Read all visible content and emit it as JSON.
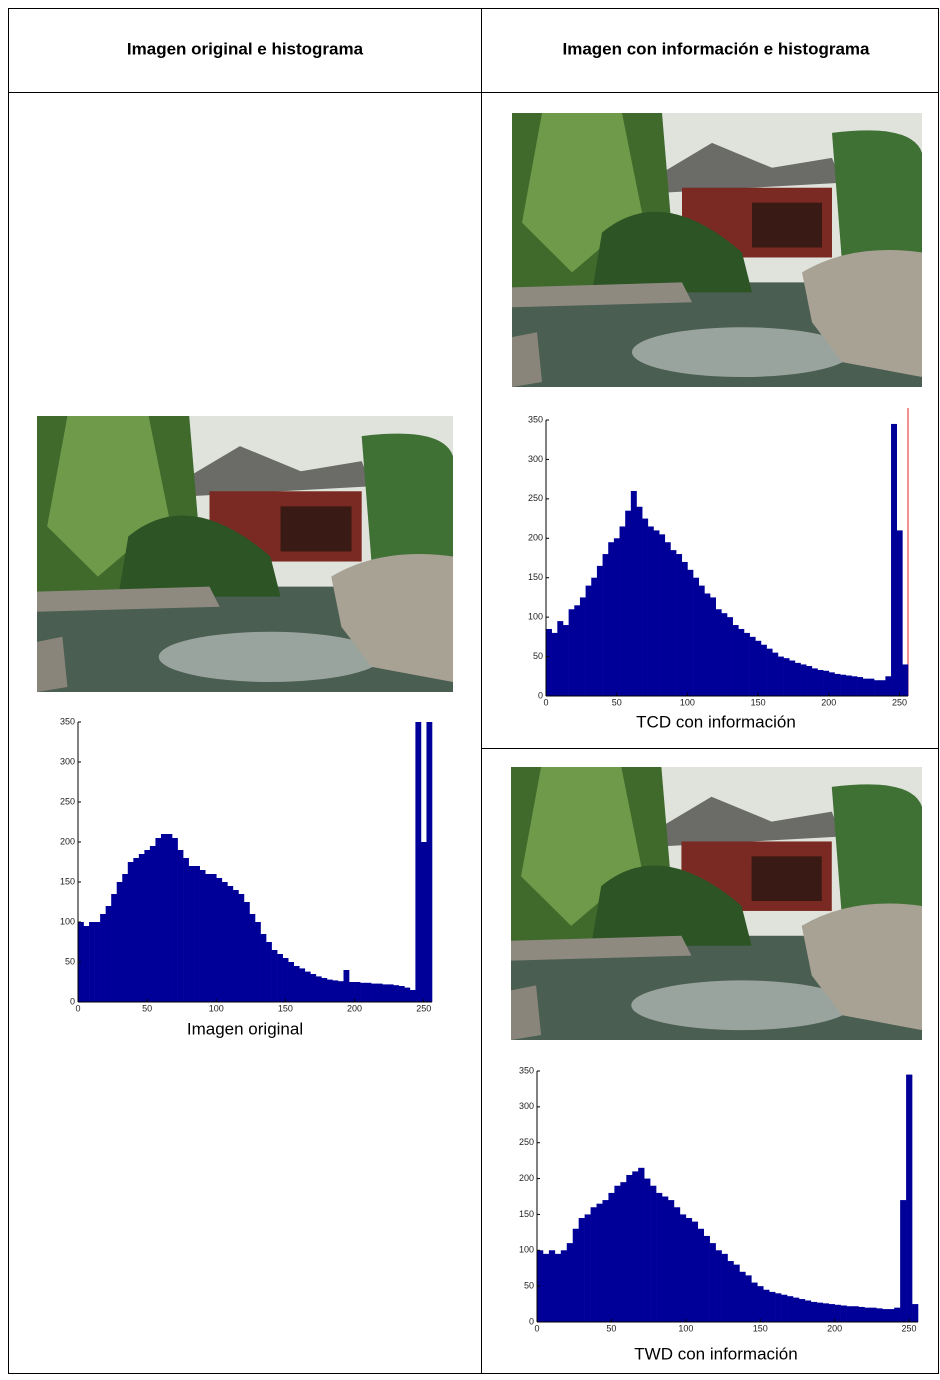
{
  "table": {
    "headers": [
      "Imagen original e histograma",
      "Imagen con información e histograma"
    ]
  },
  "chart_data": [
    {
      "type": "histogram",
      "xlabel": "Imagen original",
      "color": "#000099",
      "bins": [
        0,
        4,
        8,
        12,
        16,
        20,
        24,
        28,
        32,
        36,
        40,
        44,
        48,
        52,
        56,
        60,
        64,
        68,
        72,
        76,
        80,
        84,
        88,
        92,
        96,
        100,
        104,
        108,
        112,
        116,
        120,
        124,
        128,
        132,
        136,
        140,
        144,
        148,
        152,
        156,
        160,
        164,
        168,
        172,
        176,
        180,
        184,
        188,
        192,
        196,
        200,
        204,
        208,
        212,
        216,
        220,
        224,
        228,
        232,
        236,
        240,
        244,
        248,
        252,
        256
      ],
      "values": [
        100,
        95,
        100,
        100,
        110,
        120,
        135,
        150,
        160,
        175,
        180,
        185,
        190,
        195,
        205,
        210,
        210,
        205,
        190,
        180,
        170,
        170,
        165,
        160,
        160,
        155,
        150,
        145,
        140,
        135,
        125,
        110,
        100,
        85,
        75,
        65,
        60,
        55,
        50,
        45,
        42,
        38,
        35,
        32,
        30,
        28,
        27,
        26,
        40,
        25,
        25,
        24,
        24,
        23,
        23,
        22,
        22,
        21,
        20,
        18,
        15,
        350,
        200,
        350
      ],
      "xlim": [
        0,
        256
      ],
      "ylim": [
        0,
        350
      ],
      "xticks": [
        0,
        50,
        100,
        150,
        200,
        250
      ],
      "yticks": [
        0,
        50,
        100,
        150,
        200,
        250,
        300,
        350
      ]
    },
    {
      "type": "histogram",
      "xlabel": "TCD con información",
      "color": "#000099",
      "bins": [
        0,
        4,
        8,
        12,
        16,
        20,
        24,
        28,
        32,
        36,
        40,
        44,
        48,
        52,
        56,
        60,
        64,
        68,
        72,
        76,
        80,
        84,
        88,
        92,
        96,
        100,
        104,
        108,
        112,
        116,
        120,
        124,
        128,
        132,
        136,
        140,
        144,
        148,
        152,
        156,
        160,
        164,
        168,
        172,
        176,
        180,
        184,
        188,
        192,
        196,
        200,
        204,
        208,
        212,
        216,
        220,
        224,
        228,
        232,
        236,
        240,
        244,
        248,
        252,
        256
      ],
      "values": [
        85,
        80,
        95,
        90,
        110,
        115,
        125,
        140,
        150,
        165,
        180,
        195,
        200,
        215,
        235,
        260,
        240,
        225,
        215,
        210,
        205,
        195,
        185,
        180,
        170,
        160,
        150,
        140,
        130,
        125,
        110,
        105,
        100,
        90,
        85,
        80,
        75,
        70,
        65,
        60,
        55,
        50,
        48,
        45,
        42,
        40,
        38,
        35,
        33,
        32,
        30,
        28,
        27,
        26,
        25,
        24,
        22,
        22,
        20,
        20,
        25,
        345,
        210,
        40
      ],
      "xlim": [
        0,
        256
      ],
      "ylim": [
        0,
        350
      ],
      "xticks": [
        0,
        50,
        100,
        150,
        200,
        250
      ],
      "yticks": [
        0,
        50,
        100,
        150,
        200,
        250,
        300,
        350
      ]
    },
    {
      "type": "histogram",
      "xlabel": "TWD con información",
      "color": "#000099",
      "bins": [
        0,
        4,
        8,
        12,
        16,
        20,
        24,
        28,
        32,
        36,
        40,
        44,
        48,
        52,
        56,
        60,
        64,
        68,
        72,
        76,
        80,
        84,
        88,
        92,
        96,
        100,
        104,
        108,
        112,
        116,
        120,
        124,
        128,
        132,
        136,
        140,
        144,
        148,
        152,
        156,
        160,
        164,
        168,
        172,
        176,
        180,
        184,
        188,
        192,
        196,
        200,
        204,
        208,
        212,
        216,
        220,
        224,
        228,
        232,
        236,
        240,
        244,
        248,
        252,
        256
      ],
      "values": [
        100,
        95,
        100,
        95,
        100,
        110,
        130,
        145,
        150,
        160,
        165,
        170,
        180,
        190,
        195,
        205,
        210,
        215,
        200,
        190,
        180,
        175,
        170,
        160,
        150,
        145,
        140,
        130,
        120,
        110,
        100,
        95,
        85,
        80,
        70,
        65,
        55,
        50,
        45,
        42,
        40,
        38,
        36,
        34,
        32,
        30,
        28,
        27,
        26,
        25,
        24,
        23,
        22,
        22,
        21,
        20,
        20,
        19,
        18,
        18,
        20,
        170,
        345,
        25
      ],
      "xlim": [
        0,
        256
      ],
      "ylim": [
        0,
        350
      ],
      "xticks": [
        0,
        50,
        100,
        150,
        200,
        250
      ],
      "yticks": [
        0,
        50,
        100,
        150,
        200,
        250,
        300,
        350
      ]
    }
  ]
}
